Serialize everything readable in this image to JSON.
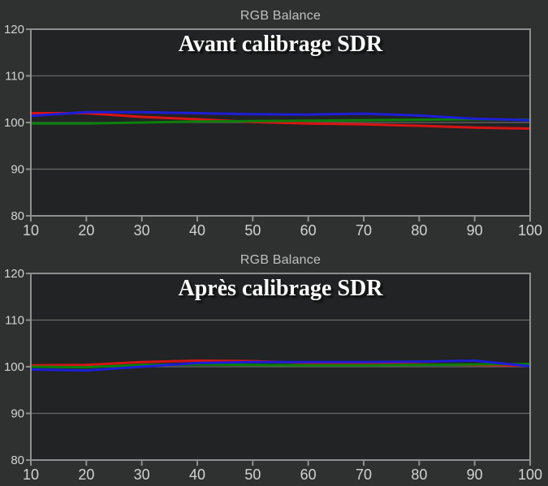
{
  "chart_data": [
    {
      "type": "line",
      "title": "RGB Balance",
      "annotation": "Avant calibrage SDR",
      "xlabel": "",
      "ylabel": "",
      "xlim": [
        10,
        100
      ],
      "ylim": [
        80,
        120
      ],
      "xticks": [
        10,
        20,
        30,
        40,
        50,
        60,
        70,
        80,
        90,
        100
      ],
      "yticks": [
        80,
        90,
        100,
        110,
        120
      ],
      "grid": true,
      "legend_position": "none",
      "x": [
        10,
        20,
        30,
        40,
        50,
        60,
        70,
        80,
        90,
        100
      ],
      "series": [
        {
          "name": "red",
          "color": "#d81414",
          "values": [
            102.0,
            102.0,
            101.2,
            100.7,
            100.1,
            99.8,
            99.6,
            99.3,
            98.9,
            98.7
          ]
        },
        {
          "name": "green",
          "color": "#0a800a",
          "values": [
            99.8,
            99.8,
            100.0,
            100.2,
            100.3,
            100.4,
            100.5,
            100.6,
            100.7,
            100.6
          ]
        },
        {
          "name": "blue",
          "color": "#1d1dd8",
          "values": [
            101.4,
            102.2,
            102.2,
            102.0,
            101.8,
            101.7,
            101.9,
            101.5,
            100.8,
            100.5
          ]
        }
      ]
    },
    {
      "type": "line",
      "title": "RGB Balance",
      "annotation": "Après calibrage SDR",
      "xlabel": "",
      "ylabel": "",
      "xlim": [
        10,
        100
      ],
      "ylim": [
        80,
        120
      ],
      "xticks": [
        10,
        20,
        30,
        40,
        50,
        60,
        70,
        80,
        90,
        100
      ],
      "yticks": [
        80,
        90,
        100,
        110,
        120
      ],
      "grid": true,
      "legend_position": "none",
      "x": [
        10,
        20,
        30,
        40,
        50,
        60,
        70,
        80,
        90,
        100
      ],
      "series": [
        {
          "name": "red",
          "color": "#d81414",
          "values": [
            100.3,
            100.4,
            101.0,
            101.3,
            101.2,
            100.8,
            100.6,
            100.5,
            100.4,
            100.2
          ]
        },
        {
          "name": "green",
          "color": "#0a800a",
          "values": [
            100.0,
            99.9,
            100.4,
            100.5,
            100.4,
            100.3,
            100.3,
            100.4,
            100.5,
            100.6
          ]
        },
        {
          "name": "blue",
          "color": "#1d1dd8",
          "values": [
            99.4,
            99.2,
            100.0,
            100.8,
            101.0,
            101.0,
            101.0,
            101.1,
            101.3,
            100.1
          ]
        }
      ]
    }
  ],
  "style_colors": {
    "outer_background": "#2f3030",
    "plot_background": "#222324",
    "frame": "#8f8f8f",
    "gridline": "#686868",
    "tick_label": "#d2d2d2",
    "title_text": "#bfc1c1",
    "annotation_text": "#ffffff"
  }
}
